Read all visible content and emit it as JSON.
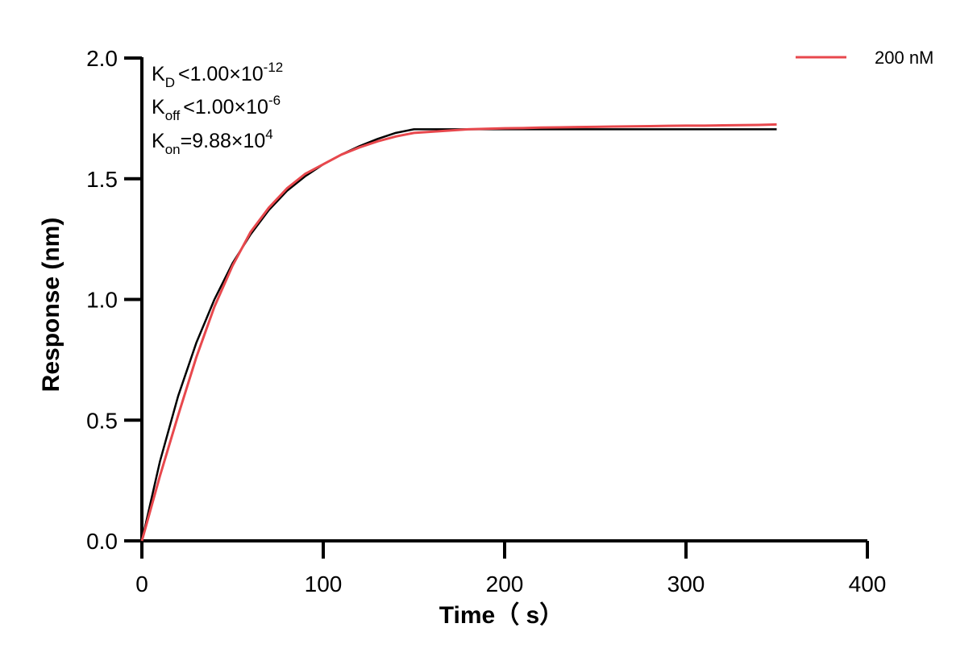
{
  "chart_data": {
    "type": "line",
    "xlabel": "Time（ s）",
    "ylabel": "Response (nm)",
    "xlim": [
      0,
      400
    ],
    "ylim": [
      0,
      2.0
    ],
    "x_ticks": [
      0,
      100,
      200,
      300,
      400
    ],
    "y_ticks": [
      0.0,
      0.5,
      1.0,
      1.5,
      2.0
    ],
    "x_tick_labels": [
      "0",
      "100",
      "200",
      "300",
      "400"
    ],
    "y_tick_labels": [
      "0.0",
      "0.5",
      "1.0",
      "1.5",
      "2.0"
    ],
    "grid": false,
    "legend_position": "top-right",
    "annotations": {
      "kd": {
        "symbol": "K",
        "subscript": "D",
        "relation": "<",
        "mantissa": "1.00×10",
        "exponent": "-12"
      },
      "koff": {
        "symbol": "K",
        "subscript": "off",
        "relation": "<",
        "mantissa": "1.00×10",
        "exponent": "-6"
      },
      "kon": {
        "symbol": "K",
        "subscript": "on",
        "relation": "=",
        "mantissa": "9.88×10",
        "exponent": "4"
      }
    },
    "series": [
      {
        "name": "200 nM",
        "role": "measured",
        "color": "#e8484d",
        "x": [
          0,
          10,
          20,
          30,
          40,
          50,
          60,
          70,
          80,
          90,
          100,
          110,
          120,
          130,
          140,
          150,
          160,
          170,
          180,
          190,
          200,
          210,
          220,
          230,
          240,
          250,
          260,
          270,
          280,
          290,
          300,
          310,
          320,
          330,
          340,
          350
        ],
        "y": [
          0.0,
          0.27,
          0.52,
          0.76,
          0.97,
          1.14,
          1.28,
          1.38,
          1.46,
          1.52,
          1.56,
          1.6,
          1.63,
          1.655,
          1.675,
          1.69,
          1.695,
          1.7,
          1.705,
          1.707,
          1.709,
          1.71,
          1.712,
          1.713,
          1.714,
          1.715,
          1.716,
          1.717,
          1.718,
          1.719,
          1.72,
          1.72,
          1.721,
          1.722,
          1.723,
          1.725
        ]
      },
      {
        "role": "fit",
        "color": "#000000",
        "x": [
          0,
          10,
          20,
          30,
          40,
          50,
          60,
          70,
          80,
          90,
          100,
          110,
          120,
          130,
          140,
          150,
          160,
          170,
          180,
          190,
          200,
          210,
          220,
          230,
          240,
          250,
          260,
          270,
          280,
          290,
          300,
          310,
          320,
          330,
          340,
          350
        ],
        "y": [
          0.0,
          0.33,
          0.6,
          0.82,
          1.0,
          1.15,
          1.27,
          1.37,
          1.45,
          1.51,
          1.56,
          1.6,
          1.635,
          1.665,
          1.69,
          1.705,
          1.705,
          1.705,
          1.705,
          1.705,
          1.705,
          1.705,
          1.705,
          1.705,
          1.705,
          1.705,
          1.705,
          1.705,
          1.705,
          1.705,
          1.705,
          1.705,
          1.705,
          1.705,
          1.705,
          1.705
        ]
      }
    ]
  }
}
